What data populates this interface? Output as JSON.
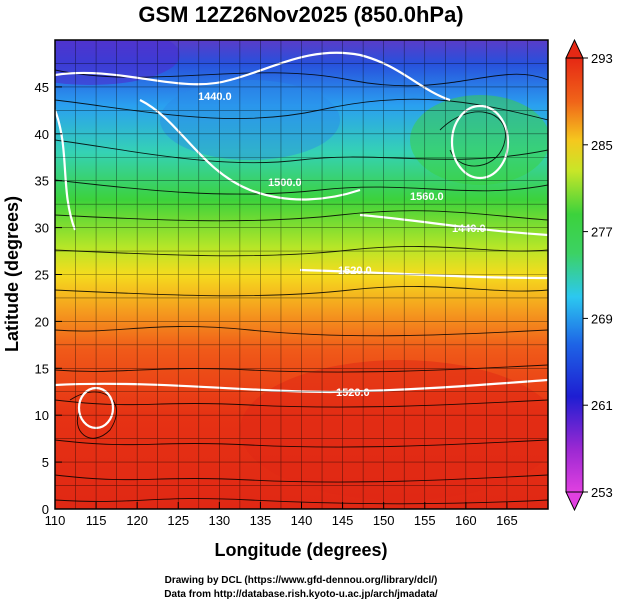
{
  "title": "GSM 12Z26Nov2025 (850.0hPa)",
  "xlabel": "Longitude (degrees)",
  "ylabel": "Latitude  (degrees)",
  "x_ticks": [
    "110",
    "115",
    "120",
    "125",
    "130",
    "135",
    "140",
    "145",
    "150",
    "155",
    "160",
    "165"
  ],
  "y_ticks": [
    "0",
    "5",
    "10",
    "15",
    "20",
    "25",
    "30",
    "35",
    "40",
    "45"
  ],
  "colorbar_ticks": [
    "253",
    "261",
    "269",
    "277",
    "285",
    "293"
  ],
  "contour_labels": [
    "1440.0",
    "1500.0",
    "1560.0",
    "1520.0",
    "1440.0",
    "1520.0"
  ],
  "credit_line1": "Drawing by DCL (https://www.gfd-dennou.org/library/dcl/)",
  "credit_line2": "Data from http://database.rish.kyoto-u.ac.jp/arch/jmadata/",
  "map": {
    "lon_range": [
      110,
      170
    ],
    "lat_range": [
      0,
      50
    ],
    "field": "temperature (K), filled",
    "contours": "geopotential height (m)",
    "vectors": "wind streamlines"
  },
  "colors": {
    "cold": "#e040e0",
    "cool": "#1e3cd2",
    "mild": "#2cc8f0",
    "temperate": "#3cd23c",
    "warm": "#f5dc1e",
    "hot": "#e62814"
  }
}
